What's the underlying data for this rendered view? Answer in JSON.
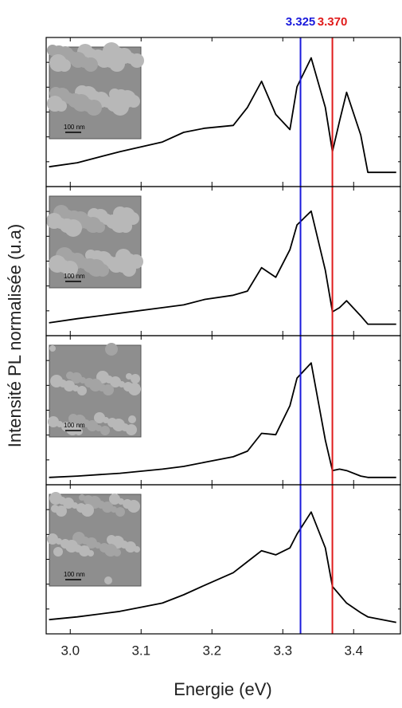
{
  "chart_data": {
    "type": "line",
    "xlabel": "Energie (eV)",
    "ylabel": "Intensité PL normalisée (u.a)",
    "xlim": [
      2.966,
      3.466
    ],
    "xticks": [
      {
        "value": 3.0,
        "label": "3.0"
      },
      3.1,
      3.2,
      3.3,
      3.4
    ],
    "ylim": [
      0,
      1
    ],
    "x": [
      2.97,
      3.01,
      3.07,
      3.13,
      3.16,
      3.19,
      3.23,
      3.25,
      3.27,
      3.29,
      3.31,
      3.32,
      3.34,
      3.36,
      3.37,
      3.38,
      3.39,
      3.41,
      3.42,
      3.46
    ],
    "series": [
      {
        "color": "#000000",
        "values": [
          0.12,
          0.15,
          0.23,
          0.3,
          0.37,
          0.4,
          0.42,
          0.55,
          0.74,
          0.5,
          0.39,
          0.7,
          0.91,
          0.55,
          0.23,
          0.45,
          0.66,
          0.35,
          0.08,
          0.08
        ]
      },
      {
        "color": "#000000",
        "values": [
          0.07,
          0.1,
          0.14,
          0.18,
          0.2,
          0.24,
          0.27,
          0.3,
          0.47,
          0.4,
          0.6,
          0.78,
          0.88,
          0.45,
          0.15,
          0.18,
          0.23,
          0.12,
          0.06,
          0.06
        ]
      },
      {
        "color": "#000000",
        "values": [
          0.03,
          0.04,
          0.06,
          0.09,
          0.11,
          0.14,
          0.18,
          0.22,
          0.35,
          0.34,
          0.55,
          0.75,
          0.86,
          0.3,
          0.08,
          0.09,
          0.08,
          0.04,
          0.03,
          0.03
        ]
      },
      {
        "color": "#000000",
        "values": [
          0.08,
          0.1,
          0.14,
          0.2,
          0.26,
          0.33,
          0.42,
          0.5,
          0.58,
          0.55,
          0.6,
          0.7,
          0.86,
          0.6,
          0.32,
          0.26,
          0.2,
          0.13,
          0.1,
          0.06
        ]
      }
    ],
    "vlines": [
      {
        "x": 3.325,
        "label": "3.325",
        "color": "#1a1adc"
      },
      {
        "x": 3.37,
        "label": "3.370",
        "color": "#e01b1b"
      }
    ],
    "inset_scale_labels": [
      "100 nm",
      "100 nm",
      "100 nm",
      "100 nm"
    ]
  }
}
